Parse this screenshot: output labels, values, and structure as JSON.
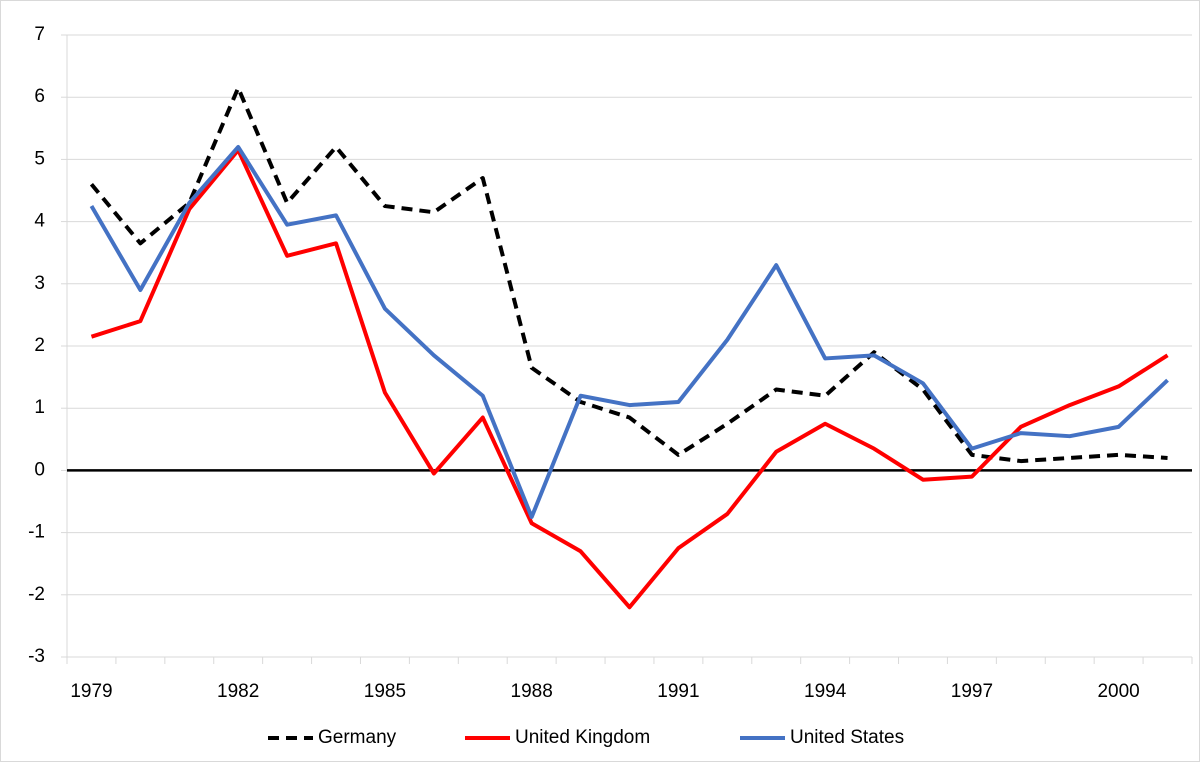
{
  "chart_data": {
    "type": "line",
    "categories": [
      "1979",
      null,
      null,
      "1982",
      null,
      null,
      "1985",
      null,
      null,
      "1988",
      null,
      null,
      "1991",
      null,
      null,
      "1994",
      null,
      null,
      "1997",
      null,
      null,
      "2000",
      null
    ],
    "series": [
      {
        "name": "Germany",
        "color": "#000000",
        "line_style": "dashed",
        "values": [
          4.6,
          3.65,
          4.3,
          6.15,
          4.3,
          5.2,
          4.25,
          4.15,
          4.7,
          1.65,
          1.1,
          0.85,
          0.25,
          0.75,
          1.3,
          1.2,
          1.9,
          1.3,
          0.25,
          0.15,
          0.2,
          0.25,
          0.2
        ]
      },
      {
        "name": "United Kingdom",
        "color": "#ff0000",
        "line_style": "solid",
        "values": [
          2.15,
          2.4,
          4.2,
          5.15,
          3.45,
          3.65,
          1.25,
          -0.05,
          0.85,
          -0.85,
          -1.3,
          -2.2,
          -1.25,
          -0.7,
          0.3,
          0.75,
          0.35,
          -0.15,
          -0.1,
          0.7,
          1.05,
          1.35,
          1.85
        ]
      },
      {
        "name": "United States",
        "color": "#4472c4",
        "line_style": "solid",
        "values": [
          4.25,
          2.9,
          4.3,
          5.2,
          3.95,
          4.1,
          2.6,
          1.85,
          1.2,
          -0.75,
          1.2,
          1.05,
          1.1,
          2.1,
          3.3,
          1.8,
          1.85,
          1.4,
          0.35,
          0.6,
          0.55,
          0.7,
          1.45
        ]
      }
    ],
    "ylim": [
      -3,
      7
    ],
    "yticks": [
      -3,
      -2,
      -1,
      0,
      1,
      2,
      3,
      4,
      5,
      6,
      7
    ],
    "grid": true,
    "legend": "bottom"
  }
}
